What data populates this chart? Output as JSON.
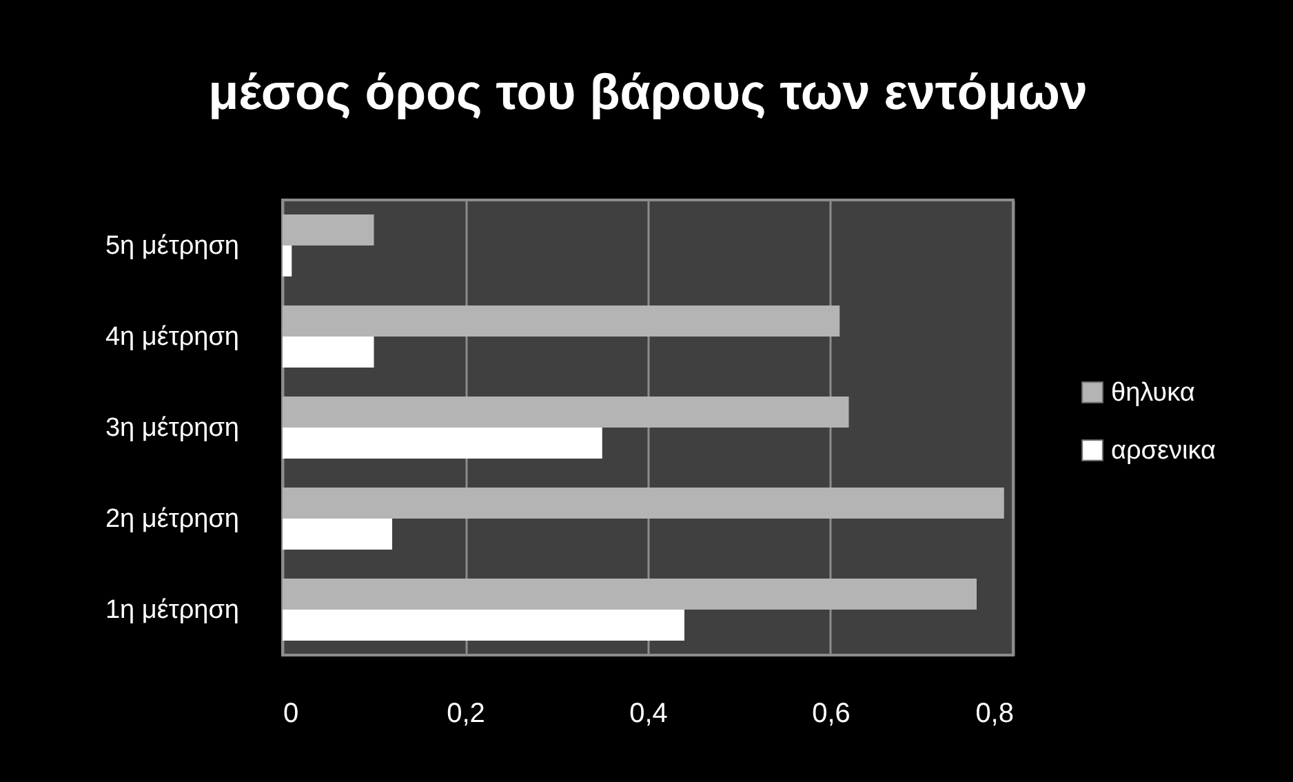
{
  "chart_data": {
    "type": "bar",
    "title": "μέσος όρος του βάρους των εντόμων",
    "orientation": "horizontal",
    "categories": [
      "5η μέτρηση",
      "4η μέτρηση",
      "3η μέτρηση",
      "2η μέτρηση",
      "1η μέτρηση"
    ],
    "series": [
      {
        "name": "θηλυκα",
        "color": "#b4b4b4",
        "values": [
          0.1,
          0.61,
          0.62,
          0.79,
          0.76
        ]
      },
      {
        "name": "αρσενικα",
        "color": "#ffffff",
        "values": [
          0.01,
          0.1,
          0.35,
          0.12,
          0.44
        ]
      }
    ],
    "xlim": [
      0,
      0.8
    ],
    "xticks": [
      0,
      {
        "value": 0.2,
        "label": "0,2"
      },
      {
        "value": 0.4,
        "label": "0,4"
      },
      {
        "value": 0.6,
        "label": "0,6"
      },
      {
        "value": 0.8,
        "label": "0,8"
      }
    ],
    "grid": "x",
    "legend": "right"
  }
}
